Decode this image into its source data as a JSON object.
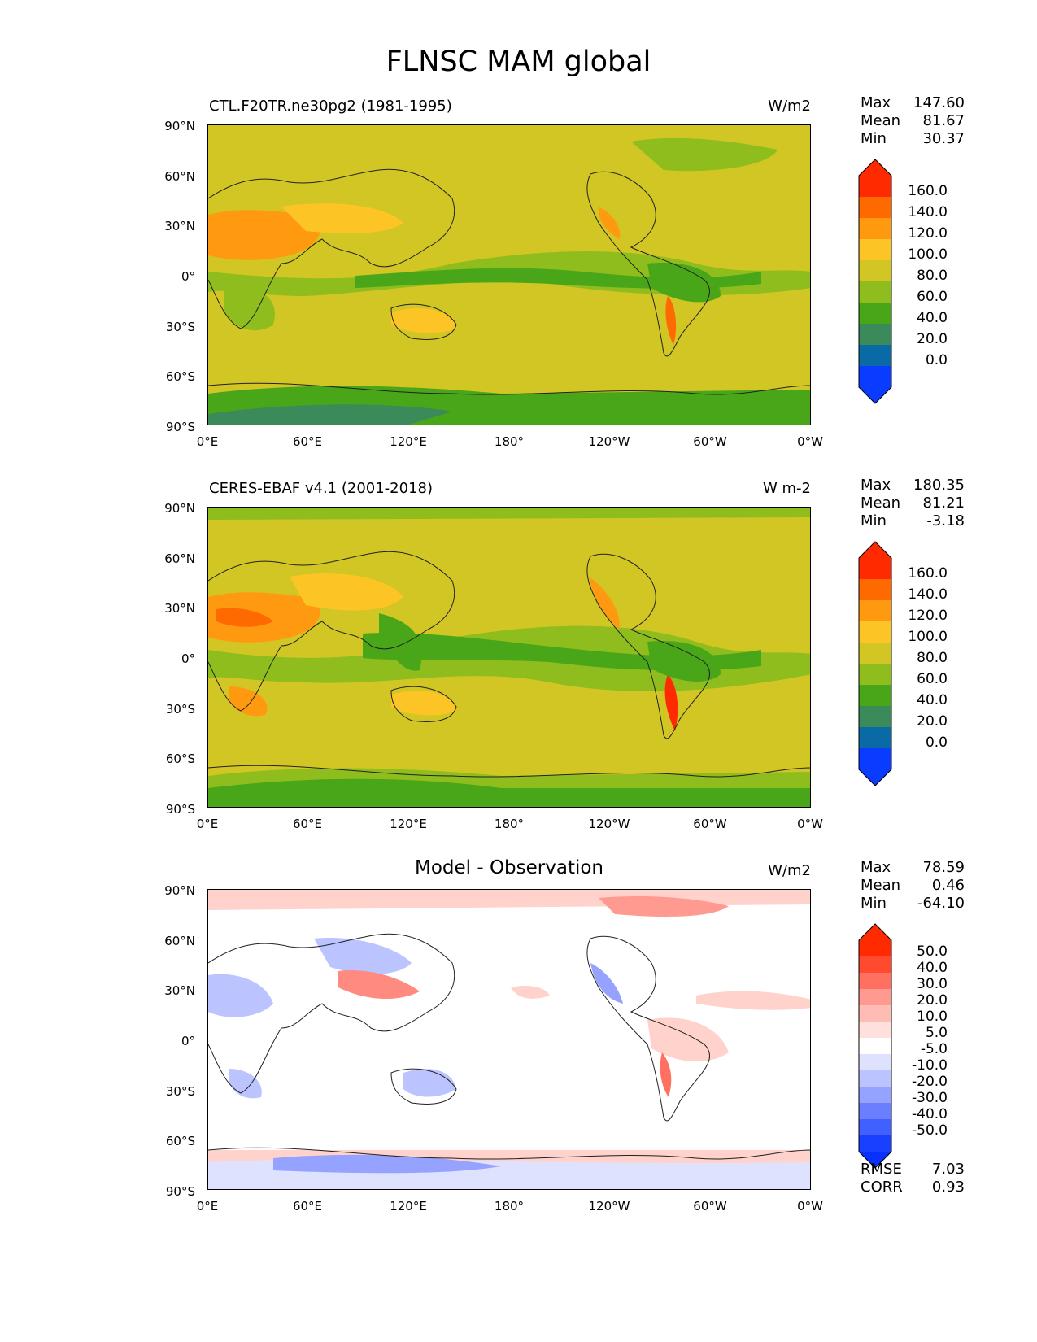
{
  "figure_title": "FLNSC MAM global",
  "lat_labels": [
    "90°N",
    "60°N",
    "30°N",
    "0°",
    "30°S",
    "60°S",
    "90°S"
  ],
  "lon_labels": [
    "0°E",
    "60°E",
    "120°E",
    "180°",
    "120°W",
    "60°W",
    "0°W"
  ],
  "panels": [
    {
      "left_title": "CTL.F20TR.ne30pg2 (1981-1995)",
      "center_title": "",
      "units": "W/m2",
      "stats": [
        {
          "label": "Max",
          "value": "147.60"
        },
        {
          "label": "Mean",
          "value": "81.67"
        },
        {
          "label": "Min",
          "value": "30.37"
        }
      ],
      "colorbar_labels": [
        "160.0",
        "140.0",
        "120.0",
        "100.0",
        "80.0",
        "60.0",
        "40.0",
        "20.0",
        "0.0"
      ],
      "colorbar_colors": [
        "#ff2a00",
        "#ff6a00",
        "#ff9a10",
        "#fdc426",
        "#d2c624",
        "#8fbd1e",
        "#4aa619",
        "#3b8a5a",
        "#0a6aa6",
        "#0a3cff"
      ],
      "colorbar_top": "#ff2a00",
      "colorbar_bottom": "#0a3cff"
    },
    {
      "left_title": "CERES-EBAF v4.1 (2001-2018)",
      "center_title": "",
      "units": "W m-2",
      "stats": [
        {
          "label": "Max",
          "value": "180.35"
        },
        {
          "label": "Mean",
          "value": "81.21"
        },
        {
          "label": "Min",
          "value": "-3.18"
        }
      ],
      "colorbar_labels": [
        "160.0",
        "140.0",
        "120.0",
        "100.0",
        "80.0",
        "60.0",
        "40.0",
        "20.0",
        "0.0"
      ],
      "colorbar_colors": [
        "#ff2a00",
        "#ff6a00",
        "#ff9a10",
        "#fdc426",
        "#d2c624",
        "#8fbd1e",
        "#4aa619",
        "#3b8a5a",
        "#0a6aa6",
        "#0a3cff"
      ],
      "colorbar_top": "#ff2a00",
      "colorbar_bottom": "#0a3cff"
    },
    {
      "left_title": "",
      "center_title": "Model - Observation",
      "units": "W/m2",
      "stats": [
        {
          "label": "Max",
          "value": "78.59"
        },
        {
          "label": "Mean",
          "value": "0.46"
        },
        {
          "label": "Min",
          "value": "-64.10"
        }
      ],
      "colorbar_labels": [
        "50.0",
        "40.0",
        "30.0",
        "20.0",
        "10.0",
        "5.0",
        "-5.0",
        "-10.0",
        "-20.0",
        "-30.0",
        "-40.0",
        "-50.0"
      ],
      "colorbar_colors": [
        "#ff2a00",
        "#ff4a30",
        "#ff7060",
        "#ff9a90",
        "#ffbcb4",
        "#ffe0dc",
        "#ffffff",
        "#dfe2ff",
        "#bcc4ff",
        "#96a2ff",
        "#6a7eff",
        "#4060ff",
        "#1a40ff"
      ],
      "colorbar_top": "#ff2a00",
      "colorbar_bottom": "#0a30ff",
      "extra_stats": [
        {
          "label": "RMSE",
          "value": "7.03"
        },
        {
          "label": "CORR",
          "value": "0.93"
        }
      ]
    }
  ],
  "map_colors": {
    "base_yellow": "#d2c624",
    "light_green": "#8fbd1e",
    "green": "#4aa619",
    "teal": "#3b8a5a",
    "orange_light": "#fdc426",
    "orange": "#ff9a10",
    "orange_dark": "#ff6a00",
    "red": "#ff2a00",
    "diff_white": "#ffffff",
    "diff_pink": "#ffd2cc",
    "diff_red": "#ff8a80",
    "diff_blue_light": "#c4cbff",
    "diff_blue": "#7f92ff"
  }
}
